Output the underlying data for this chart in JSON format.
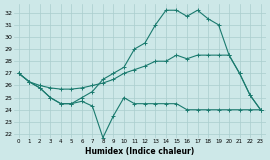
{
  "xlabel": "Humidex (Indice chaleur)",
  "background_color": "#cde8e8",
  "grid_color": "#aacece",
  "line_color": "#1a7a6e",
  "xlim": [
    -0.5,
    23.5
  ],
  "ylim": [
    21.7,
    32.7
  ],
  "xtick_vals": [
    0,
    1,
    2,
    3,
    4,
    5,
    6,
    7,
    8,
    9,
    10,
    11,
    12,
    13,
    14,
    15,
    16,
    17,
    18,
    19,
    20,
    21,
    22,
    23
  ],
  "ytick_vals": [
    22,
    23,
    24,
    25,
    26,
    27,
    28,
    29,
    30,
    31,
    32
  ],
  "series1_x": [
    0,
    1,
    2,
    3,
    4,
    5,
    6,
    7,
    8,
    9,
    10,
    11,
    12,
    13,
    14,
    15,
    16,
    17,
    18,
    19,
    20,
    21,
    22,
    23
  ],
  "series1_y": [
    27.0,
    26.3,
    25.8,
    25.0,
    24.5,
    24.5,
    24.7,
    24.3,
    21.7,
    23.5,
    25.0,
    24.5,
    24.5,
    24.5,
    24.5,
    24.5,
    24.0,
    24.0,
    24.0,
    24.0,
    24.0,
    24.0,
    24.0,
    24.0
  ],
  "series2_x": [
    0,
    1,
    2,
    3,
    4,
    5,
    6,
    7,
    8,
    9,
    10,
    11,
    12,
    13,
    14,
    15,
    16,
    17,
    18,
    19,
    20,
    21,
    22,
    23
  ],
  "series2_y": [
    27.0,
    26.3,
    26.0,
    25.8,
    25.7,
    25.7,
    25.8,
    26.0,
    26.2,
    26.5,
    27.0,
    27.3,
    27.6,
    28.0,
    28.0,
    28.5,
    28.2,
    28.5,
    28.5,
    28.5,
    28.5,
    27.0,
    25.2,
    24.0
  ],
  "series3_x": [
    0,
    1,
    2,
    3,
    4,
    5,
    6,
    7,
    8,
    9,
    10,
    11,
    12,
    13,
    14,
    15,
    16,
    17,
    18,
    19,
    20,
    21,
    22,
    23
  ],
  "series3_y": [
    27.0,
    26.3,
    25.8,
    25.0,
    24.5,
    24.5,
    25.0,
    25.5,
    26.5,
    27.0,
    27.5,
    29.0,
    29.5,
    31.0,
    32.2,
    32.2,
    31.7,
    32.2,
    31.5,
    31.0,
    28.5,
    27.0,
    25.2,
    24.0
  ]
}
